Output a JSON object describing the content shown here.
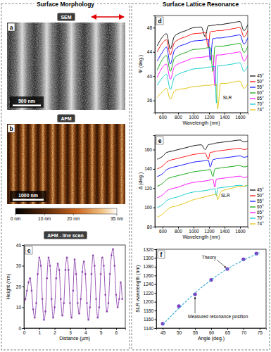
{
  "headers": [
    "Surface Morphology",
    "Surface Lattice Resonance"
  ],
  "images": [
    {
      "label": "SEM",
      "panel_label": "a",
      "scale_bar": "500 nm"
    },
    {
      "label": "AFM",
      "panel_label": "b",
      "scale_bar": "1000 nm",
      "colorbar": {
        "range": [
          0,
          35
        ],
        "ticks": [
          {
            "value": 0,
            "label": "0 nm"
          },
          {
            "value": 10,
            "label": "10 nm"
          },
          {
            "value": 20,
            "label": "20 nm"
          },
          {
            "value": 35,
            "label": "35 nm"
          }
        ]
      }
    }
  ],
  "chart_data": [
    {
      "type": "line",
      "panel_label": "c",
      "title": "AFM - line scan",
      "xlabel": "Distance (µm)",
      "ylabel": "Height (nm)",
      "xlim": [
        0,
        6.6
      ],
      "ylim": [
        0,
        40
      ],
      "xticks": [
        0,
        1,
        2,
        3,
        4,
        5,
        6
      ],
      "yticks": [
        0,
        10,
        20,
        30,
        40
      ],
      "x": [
        0,
        0.1,
        0.2,
        0.3,
        0.4,
        0.5,
        0.6,
        0.7,
        0.8,
        0.9,
        1,
        1.1,
        1.2,
        1.3,
        1.4,
        1.5,
        1.6,
        1.7,
        1.8,
        1.9,
        2,
        2.1,
        2.2,
        2.3,
        2.4,
        2.5,
        2.6,
        2.7,
        2.8,
        2.9,
        3,
        3.1,
        3.2,
        3.3,
        3.4,
        3.5,
        3.6,
        3.7,
        3.8,
        3.9,
        4,
        4.1,
        4.2,
        4.3,
        4.4,
        4.5,
        4.6,
        4.7,
        4.8,
        4.9,
        5,
        5.1,
        5.2,
        5.3,
        5.4,
        5.5,
        5.6,
        5.7,
        5.8,
        5.9,
        6,
        6.1,
        6.2,
        6.3,
        6.4
      ],
      "series": [
        {
          "color": "#8e44ad",
          "marker": "circle",
          "values": [
            12,
            14,
            18,
            22,
            24,
            18,
            9,
            5,
            12,
            26,
            34,
            30,
            14,
            4,
            8,
            24,
            34,
            30,
            14,
            5,
            10,
            24,
            31,
            28,
            14,
            6,
            12,
            28,
            34,
            28,
            12,
            5,
            18,
            33,
            26,
            12,
            7,
            14,
            27,
            32,
            26,
            12,
            4,
            10,
            26,
            35,
            30,
            14,
            5,
            10,
            26,
            34,
            30,
            16,
            8,
            12,
            26,
            35,
            38,
            30,
            16,
            10,
            14,
            22,
            14
          ]
        }
      ]
    },
    {
      "type": "line",
      "panel_label": "d",
      "xlabel": "Wavelength (nm)",
      "ylabel": "Ψ (deg.)",
      "xlim": [
        500,
        1700
      ],
      "ylim": [
        34,
        50
      ],
      "xticks": [
        600,
        800,
        1000,
        1200,
        1400,
        1600
      ],
      "yticks": [
        36,
        40,
        44,
        48
      ],
      "legend": "right",
      "annotations": [
        {
          "text": "SLR"
        }
      ],
      "x": [
        530,
        600,
        650,
        700,
        750,
        800,
        900,
        1000,
        1100,
        1150,
        1190,
        1215,
        1250,
        1275,
        1295,
        1310,
        1350,
        1400,
        1500,
        1600,
        1650,
        1700
      ],
      "series": [
        {
          "name": "45°",
          "color": "#000000",
          "values": [
            45,
            46.5,
            47,
            44.5,
            46.5,
            47,
            47.5,
            48,
            48.1,
            46.5,
            48.3,
            48.3,
            48.4,
            48.4,
            48.5,
            48.5,
            48.5,
            48.6,
            48.8,
            49,
            47.5,
            48.5
          ]
        },
        {
          "name": "50°",
          "color": "#ff0000",
          "values": [
            44,
            45.5,
            46,
            43.5,
            45.5,
            46,
            46.5,
            47,
            47.1,
            47.2,
            44.8,
            47.3,
            47.4,
            47.4,
            47.5,
            47.5,
            47.5,
            47.6,
            47.8,
            48,
            46.5,
            47.5
          ]
        },
        {
          "name": "55°",
          "color": "#0000ff",
          "values": [
            42.5,
            44,
            44.8,
            42,
            44.2,
            44.8,
            45.3,
            45.8,
            45.9,
            46,
            46.1,
            42.6,
            46.2,
            46.2,
            46.3,
            46.3,
            46.3,
            46.4,
            46.6,
            46.8,
            45.3,
            46.3
          ]
        },
        {
          "name": "60°",
          "color": "#00a000",
          "values": [
            41,
            42.8,
            43.4,
            40.8,
            42.9,
            43.4,
            43.9,
            44.4,
            44.5,
            44.6,
            44.7,
            44.7,
            40.8,
            44.8,
            44.9,
            44.9,
            44.9,
            45,
            45.2,
            45.4,
            43.9,
            44.9
          ]
        },
        {
          "name": "65°",
          "color": "#ff00ff",
          "values": [
            39.8,
            41.5,
            42,
            39.5,
            41.5,
            42,
            42.5,
            43,
            43.1,
            43.2,
            43.3,
            43.3,
            43.4,
            38.4,
            43.5,
            43.5,
            43.5,
            43.6,
            43.8,
            44,
            42.5,
            43.5
          ]
        },
        {
          "name": "70°",
          "color": "#00c8c8",
          "values": [
            38.5,
            39.8,
            40.3,
            37.8,
            39.8,
            40.3,
            40.8,
            41.2,
            41.3,
            41.4,
            41.5,
            41.5,
            41.6,
            41.6,
            35.6,
            41.7,
            41.7,
            41.8,
            42,
            42.2,
            40.8,
            41.7
          ]
        },
        {
          "name": "74°",
          "color": "#e0c000",
          "values": [
            36.5,
            37.5,
            38,
            36.2,
            37.5,
            37.8,
            38,
            38.3,
            38.4,
            38.5,
            38.5,
            38.5,
            38.6,
            38.6,
            38.7,
            34.6,
            38.8,
            38.8,
            39,
            39.2,
            38,
            38.8
          ]
        }
      ]
    },
    {
      "type": "line",
      "panel_label": "e",
      "xlabel": "Wavelength (nm)",
      "ylabel": "Δ (deg.)",
      "xlim": [
        500,
        1700
      ],
      "ylim": [
        80,
        175
      ],
      "xticks": [
        600,
        800,
        1000,
        1200,
        1400,
        1600
      ],
      "yticks": [
        80,
        100,
        120,
        140,
        160
      ],
      "legend": "right",
      "annotations": [
        {
          "text": "SLR"
        }
      ],
      "x": [
        530,
        600,
        650,
        700,
        750,
        800,
        900,
        1000,
        1100,
        1150,
        1190,
        1215,
        1250,
        1275,
        1295,
        1310,
        1350,
        1400,
        1500,
        1600,
        1650,
        1700
      ],
      "series": [
        {
          "name": "45°",
          "color": "#000000",
          "values": [
            150,
            153,
            157,
            158,
            159,
            160,
            162,
            164,
            165,
            160,
            165,
            165.5,
            166,
            166.5,
            167,
            167,
            167.5,
            168,
            169,
            170,
            168,
            169
          ]
        },
        {
          "name": "50°",
          "color": "#ff0000",
          "values": [
            140,
            143,
            147,
            149,
            150,
            151,
            153,
            155,
            156,
            156.5,
            150,
            157,
            157.5,
            158,
            158.5,
            158.5,
            159,
            159.5,
            160.5,
            161.5,
            160,
            161
          ]
        },
        {
          "name": "55°",
          "color": "#0000ff",
          "values": [
            132,
            135,
            139,
            141,
            142,
            143,
            145,
            147,
            148,
            148.5,
            149,
            142,
            149.5,
            150,
            150.5,
            150.5,
            151,
            151.5,
            152.5,
            153.5,
            152,
            153
          ]
        },
        {
          "name": "60°",
          "color": "#00a000",
          "values": [
            122,
            125,
            129,
            131,
            132,
            133,
            135,
            137,
            138,
            138.5,
            139,
            139.5,
            132,
            140,
            140.5,
            140.5,
            141,
            141.5,
            142.5,
            143.5,
            142,
            143
          ]
        },
        {
          "name": "65°",
          "color": "#ff00ff",
          "values": [
            110,
            113,
            117,
            119,
            120,
            121,
            124,
            126,
            127,
            127.5,
            128,
            128.5,
            129,
            121,
            129.5,
            129.5,
            130,
            130.5,
            131.5,
            132.5,
            131,
            132
          ]
        },
        {
          "name": "70°",
          "color": "#00c8c8",
          "values": [
            100,
            103,
            107,
            109,
            110,
            111,
            114,
            116,
            117,
            117.5,
            118,
            118.5,
            119,
            119.5,
            112,
            120,
            120.5,
            121,
            122,
            123,
            122,
            123
          ]
        },
        {
          "name": "74°",
          "color": "#e0c000",
          "values": [
            90,
            93,
            97,
            100,
            101,
            102,
            105,
            108,
            110,
            111,
            112,
            112.5,
            113,
            113.5,
            114,
            108,
            116,
            118,
            120,
            122,
            122,
            124
          ]
        }
      ]
    },
    {
      "type": "scatter",
      "panel_label": "f",
      "xlabel": "Angle (deg.)",
      "ylabel": "SLR wavelength (nm)",
      "xlim": [
        43,
        77
      ],
      "ylim": [
        1140,
        1320
      ],
      "xticks": [
        45,
        50,
        55,
        60,
        65,
        70,
        75
      ],
      "yticks": [
        1140,
        1160,
        1180,
        1200,
        1220,
        1240,
        1260,
        1280,
        1300,
        1320
      ],
      "annotations": [
        {
          "text": "Theory"
        },
        {
          "text": "Measured resonance position"
        }
      ],
      "series": [
        {
          "type": "scatter",
          "marker": "circle",
          "color": "#7b3fc4",
          "x": [
            45,
            50,
            55,
            60,
            65,
            70,
            74
          ],
          "values": [
            1150,
            1190,
            1217,
            1250,
            1275,
            1297,
            1310
          ]
        },
        {
          "type": "line",
          "line_style": "dashed",
          "color": "#2aa8d8",
          "x": [
            45,
            50,
            55,
            60,
            65,
            70,
            75
          ],
          "values": [
            1148,
            1185,
            1220,
            1250,
            1275,
            1295,
            1312
          ]
        }
      ]
    }
  ]
}
